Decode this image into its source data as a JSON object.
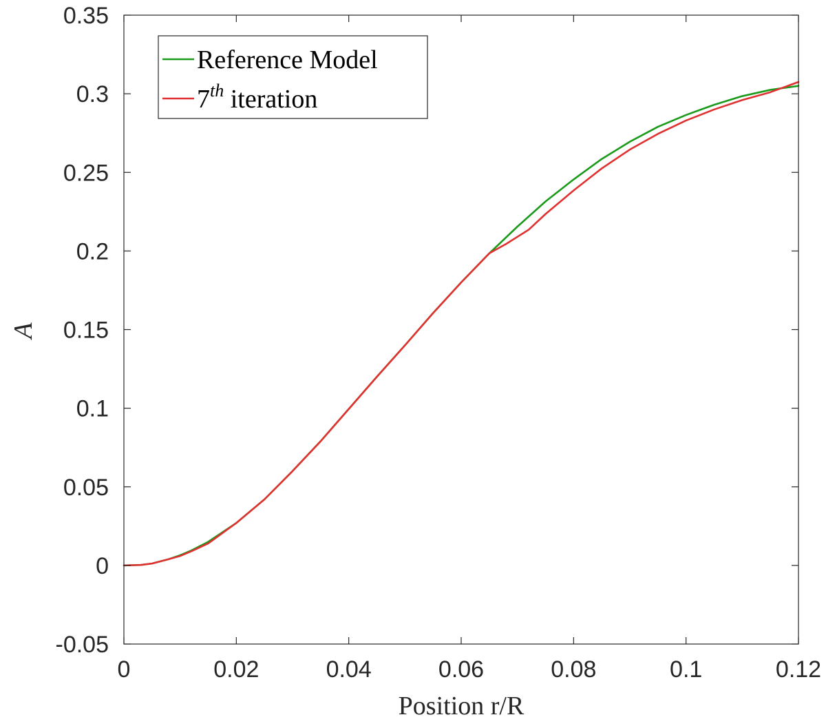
{
  "chart_data": {
    "type": "line",
    "title": "",
    "xlabel": "Position r/R",
    "ylabel": "A",
    "xlim": [
      0,
      0.12
    ],
    "ylim": [
      -0.05,
      0.35
    ],
    "grid": false,
    "legend_position": "top-left",
    "x_ticks": [
      0,
      0.02,
      0.04,
      0.06,
      0.08,
      0.1,
      0.12
    ],
    "x_tick_labels": [
      "0",
      "0.02",
      "0.04",
      "0.06",
      "0.08",
      "0.1",
      "0.12"
    ],
    "y_ticks": [
      -0.05,
      0,
      0.05,
      0.1,
      0.15,
      0.2,
      0.25,
      0.3,
      0.35
    ],
    "y_tick_labels": [
      "-0.05",
      "0",
      "0.05",
      "0.1",
      "0.15",
      "0.2",
      "0.25",
      "0.3",
      "0.35"
    ],
    "series": [
      {
        "name": "Reference Model",
        "color": "#1a9a1a",
        "x": [
          0,
          0.003,
          0.005,
          0.008,
          0.01,
          0.012,
          0.015,
          0.02,
          0.025,
          0.03,
          0.035,
          0.04,
          0.045,
          0.05,
          0.055,
          0.06,
          0.065,
          0.07,
          0.075,
          0.08,
          0.085,
          0.09,
          0.095,
          0.1,
          0.105,
          0.11,
          0.115,
          0.12
        ],
        "y": [
          0,
          0.0003,
          0.0012,
          0.004,
          0.0065,
          0.0095,
          0.015,
          0.027,
          0.042,
          0.06,
          0.079,
          0.0995,
          0.12,
          0.14,
          0.1605,
          0.18,
          0.1985,
          0.2155,
          0.2315,
          0.2455,
          0.2585,
          0.2695,
          0.279,
          0.2865,
          0.293,
          0.2985,
          0.3025,
          0.305
        ]
      },
      {
        "name": "7th iteration",
        "color": "#e03030",
        "x": [
          0,
          0.003,
          0.005,
          0.008,
          0.01,
          0.012,
          0.015,
          0.02,
          0.025,
          0.03,
          0.035,
          0.04,
          0.045,
          0.05,
          0.055,
          0.06,
          0.065,
          0.068,
          0.07,
          0.072,
          0.075,
          0.08,
          0.085,
          0.09,
          0.095,
          0.1,
          0.105,
          0.11,
          0.115,
          0.12
        ],
        "y": [
          0,
          0.0003,
          0.0012,
          0.004,
          0.006,
          0.009,
          0.014,
          0.027,
          0.042,
          0.06,
          0.079,
          0.0995,
          0.12,
          0.14,
          0.1605,
          0.18,
          0.1985,
          0.2045,
          0.209,
          0.2135,
          0.2235,
          0.2385,
          0.2525,
          0.2645,
          0.2745,
          0.283,
          0.29,
          0.296,
          0.301,
          0.3075
        ]
      }
    ]
  },
  "legend": {
    "entry_1": "Reference Model",
    "entry_2_base": "7",
    "entry_2_sup": "th",
    "entry_2_rest": " iteration"
  }
}
